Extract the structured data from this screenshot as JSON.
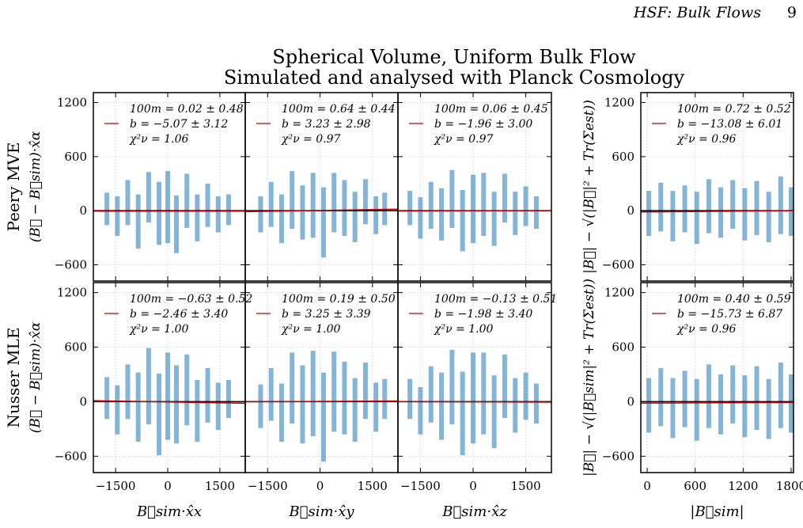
{
  "header": {
    "running_title": "HSF: Bulk Flows",
    "page_number": "9"
  },
  "figure": {
    "title": [
      "Spherical Volume, Uniform Bulk Flow",
      "Simulated and analysed with Planck Cosmology"
    ]
  },
  "chart_data": [
    {
      "type": "errorbar",
      "row_label": "Peery MVE",
      "ylabel": "(B⃗ − B⃗sim)·x̂α",
      "xlim": [
        -2140,
        2230
      ],
      "ylim": [
        -780,
        1310
      ],
      "xticks": [
        -1500,
        0,
        1500
      ],
      "yticks": [
        {
          "value": -600,
          "label": "−600"
        },
        0,
        600,
        1200
      ],
      "tick_labels": {
        "x": false,
        "y": true
      },
      "grid": true,
      "legend_lines": [
        "100m = 0.02 ± 0.48",
        "b = −5.07 ± 3.12",
        "χ²ν = 1.06"
      ],
      "fit_color": "#c00000",
      "fit_line": {
        "x": [
          -2140,
          2230
        ],
        "y": [
          -5,
          -5
        ]
      },
      "points": {
        "color": "#1f77b4",
        "x": [
          -1750,
          -1450,
          -1150,
          -850,
          -550,
          -250,
          0,
          250,
          550,
          850,
          1150,
          1450,
          1750
        ],
        "y": [
          20,
          -60,
          90,
          -120,
          150,
          -30,
          40,
          -150,
          110,
          -80,
          60,
          -40,
          10
        ],
        "yerr": [
          180,
          220,
          250,
          300,
          280,
          350,
          400,
          320,
          300,
          260,
          240,
          200,
          170
        ]
      }
    },
    {
      "type": "errorbar",
      "xlim": [
        -2140,
        2230
      ],
      "ylim": [
        -780,
        1310
      ],
      "xticks": [
        -1500,
        0,
        1500
      ],
      "yticks": [
        -600,
        0,
        600,
        1200
      ],
      "tick_labels": {
        "x": false,
        "y": false
      },
      "grid": true,
      "legend_lines": [
        "100m = 0.64 ± 0.44",
        "b = 3.23 ± 2.98",
        "χ²ν = 0.97"
      ],
      "fit_color": "#c00000",
      "fit_line": {
        "x": [
          -2140,
          2230
        ],
        "y": [
          -11,
          17
        ]
      },
      "points": {
        "color": "#1f77b4",
        "x": [
          -1700,
          -1400,
          -1100,
          -800,
          -500,
          -200,
          100,
          400,
          700,
          1000,
          1300,
          1600,
          1850
        ],
        "y": [
          -40,
          70,
          -90,
          120,
          -20,
          60,
          -130,
          90,
          30,
          -70,
          100,
          -50,
          20
        ],
        "yerr": [
          200,
          250,
          270,
          320,
          300,
          360,
          390,
          330,
          310,
          280,
          250,
          210,
          180
        ]
      }
    },
    {
      "type": "errorbar",
      "xlim": [
        -2140,
        2230
      ],
      "ylim": [
        -780,
        1310
      ],
      "xticks": [
        -1500,
        0,
        1500
      ],
      "yticks": [
        -600,
        0,
        600,
        1200
      ],
      "tick_labels": {
        "x": false,
        "y": false
      },
      "grid": true,
      "legend_lines": [
        "100m = 0.06 ± 0.45",
        "b = −1.96 ± 3.00",
        "χ²ν = 0.97"
      ],
      "fit_color": "#c00000",
      "fit_line": {
        "x": [
          -2140,
          2230
        ],
        "y": [
          -3,
          0
        ]
      },
      "points": {
        "color": "#1f77b4",
        "x": [
          -1800,
          -1500,
          -1200,
          -900,
          -600,
          -300,
          0,
          300,
          600,
          900,
          1200,
          1500,
          1800
        ],
        "y": [
          30,
          -80,
          60,
          -40,
          130,
          -110,
          20,
          70,
          -90,
          140,
          -30,
          50,
          -20
        ],
        "yerr": [
          190,
          230,
          260,
          290,
          320,
          340,
          380,
          350,
          300,
          270,
          240,
          220,
          180
        ]
      }
    },
    {
      "type": "errorbar",
      "ylabel": "|B⃗| − √(|B⃗|² + Tr(Σest))",
      "xlim": [
        -80,
        1830
      ],
      "ylim": [
        -780,
        1310
      ],
      "xticks": [
        0,
        600,
        1200,
        1800
      ],
      "yticks": [
        {
          "value": -600,
          "label": "−600"
        },
        0,
        600,
        1200
      ],
      "tick_labels": {
        "x": false,
        "y": true
      },
      "grid": true,
      "legend_lines": [
        "100m = 0.72 ± 0.52",
        "b = −13.08 ± 6.01",
        "χ²ν = 0.96"
      ],
      "fit_color": "#c00000",
      "fit_line": {
        "x": [
          -80,
          1830
        ],
        "y": [
          -14,
          0
        ]
      },
      "points": {
        "color": "#1f77b4",
        "x": [
          20,
          170,
          320,
          470,
          620,
          770,
          920,
          1070,
          1220,
          1370,
          1520,
          1670,
          1800
        ],
        "y": [
          -30,
          40,
          -60,
          20,
          -80,
          50,
          -20,
          70,
          -40,
          30,
          -70,
          60,
          -10
        ],
        "yerr": [
          250,
          270,
          280,
          260,
          290,
          300,
          280,
          270,
          290,
          300,
          280,
          320,
          270
        ]
      }
    },
    {
      "type": "errorbar",
      "row_label": "Nusser MLE",
      "ylabel": "(B⃗ − B⃗sim)·x̂α",
      "xlim": [
        -2140,
        2230
      ],
      "ylim": [
        -780,
        1310
      ],
      "xticks": [
        {
          "value": -1500,
          "label": "−1500"
        },
        0,
        1500
      ],
      "yticks": [
        {
          "value": -600,
          "label": "−600"
        },
        0,
        600,
        1200
      ],
      "tick_labels": {
        "x": true,
        "y": true
      },
      "grid": true,
      "xlabel": "B⃗sim·x̂x",
      "legend_lines": [
        "100m = −0.63 ± 0.52",
        "b = −2.46 ± 3.40",
        "χ²ν = 1.00"
      ],
      "fit_color": "#c00000",
      "fit_line": {
        "x": [
          -2140,
          2230
        ],
        "y": [
          11,
          -17
        ]
      },
      "points": {
        "color": "#1f77b4",
        "x": [
          -1750,
          -1450,
          -1150,
          -850,
          -550,
          -250,
          0,
          250,
          550,
          850,
          1150,
          1450,
          1750
        ],
        "y": [
          40,
          -90,
          110,
          -60,
          170,
          -140,
          60,
          -30,
          130,
          -100,
          70,
          -50,
          30
        ],
        "yerr": [
          230,
          270,
          300,
          380,
          420,
          450,
          480,
          430,
          390,
          340,
          300,
          260,
          210
        ]
      }
    },
    {
      "type": "errorbar",
      "xlim": [
        -2140,
        2230
      ],
      "ylim": [
        -780,
        1310
      ],
      "xticks": [
        {
          "value": -1500,
          "label": "−1500"
        },
        0,
        1500
      ],
      "yticks": [
        -600,
        0,
        600,
        1200
      ],
      "tick_labels": {
        "x": true,
        "y": false
      },
      "grid": true,
      "xlabel": "B⃗sim·x̂y",
      "legend_lines": [
        "100m = 0.19 ± 0.50",
        "b = 3.25 ± 3.39",
        "χ²ν = 1.00"
      ],
      "fit_color": "#c00000",
      "fit_line": {
        "x": [
          -2140,
          2230
        ],
        "y": [
          -1,
          7
        ]
      },
      "points": {
        "color": "#1f77b4",
        "x": [
          -1700,
          -1400,
          -1100,
          -800,
          -500,
          -200,
          100,
          400,
          700,
          1000,
          1300,
          1600,
          1850
        ],
        "y": [
          -50,
          80,
          -120,
          150,
          -30,
          90,
          -170,
          110,
          40,
          -90,
          120,
          -60,
          30
        ],
        "yerr": [
          240,
          290,
          320,
          390,
          430,
          470,
          490,
          440,
          400,
          350,
          310,
          270,
          220
        ]
      }
    },
    {
      "type": "errorbar",
      "xlim": [
        -2140,
        2230
      ],
      "ylim": [
        -780,
        1310
      ],
      "xticks": [
        {
          "value": -1500,
          "label": "−1500"
        },
        0,
        1500
      ],
      "yticks": [
        -600,
        0,
        600,
        1200
      ],
      "tick_labels": {
        "x": true,
        "y": false
      },
      "grid": true,
      "xlabel": "B⃗sim·x̂z",
      "legend_lines": [
        "100m = −0.13 ± 0.51",
        "b = −1.98 ± 3.40",
        "χ²ν = 1.00"
      ],
      "fit_color": "#c00000",
      "fit_line": {
        "x": [
          -2140,
          2230
        ],
        "y": [
          1,
          -5
        ]
      },
      "points": {
        "color": "#1f77b4",
        "x": [
          -1800,
          -1500,
          -1200,
          -900,
          -600,
          -300,
          0,
          300,
          600,
          900,
          1200,
          1500,
          1800
        ],
        "y": [
          30,
          -100,
          80,
          -50,
          160,
          -130,
          40,
          90,
          -110,
          170,
          -40,
          60,
          -20
        ],
        "yerr": [
          220,
          260,
          310,
          370,
          410,
          460,
          500,
          450,
          400,
          350,
          300,
          260,
          220
        ]
      }
    },
    {
      "type": "errorbar",
      "ylabel": "|B⃗| − √(|B⃗sim|² + Tr(Σest))",
      "xlim": [
        -80,
        1830
      ],
      "ylim": [
        -780,
        1310
      ],
      "xticks": [
        0,
        600,
        1200,
        1800
      ],
      "yticks": [
        {
          "value": -600,
          "label": "−600"
        },
        0,
        600,
        1200
      ],
      "tick_labels": {
        "x": true,
        "y": true
      },
      "grid": true,
      "xlabel": "|B⃗sim|",
      "legend_lines": [
        "100m = 0.40 ± 0.59",
        "b = −15.73 ± 6.87",
        "χ²ν = 0.96"
      ],
      "fit_color": "#c00000",
      "fit_line": {
        "x": [
          -80,
          1830
        ],
        "y": [
          -16,
          -8
        ]
      },
      "points": {
        "color": "#1f77b4",
        "x": [
          20,
          170,
          320,
          470,
          620,
          770,
          920,
          1070,
          1220,
          1370,
          1520,
          1670,
          1800
        ],
        "y": [
          -40,
          50,
          -70,
          30,
          -90,
          60,
          -30,
          80,
          -50,
          40,
          -80,
          70,
          -20
        ],
        "yerr": [
          300,
          320,
          330,
          310,
          340,
          350,
          330,
          320,
          340,
          350,
          330,
          360,
          320
        ]
      }
    }
  ]
}
